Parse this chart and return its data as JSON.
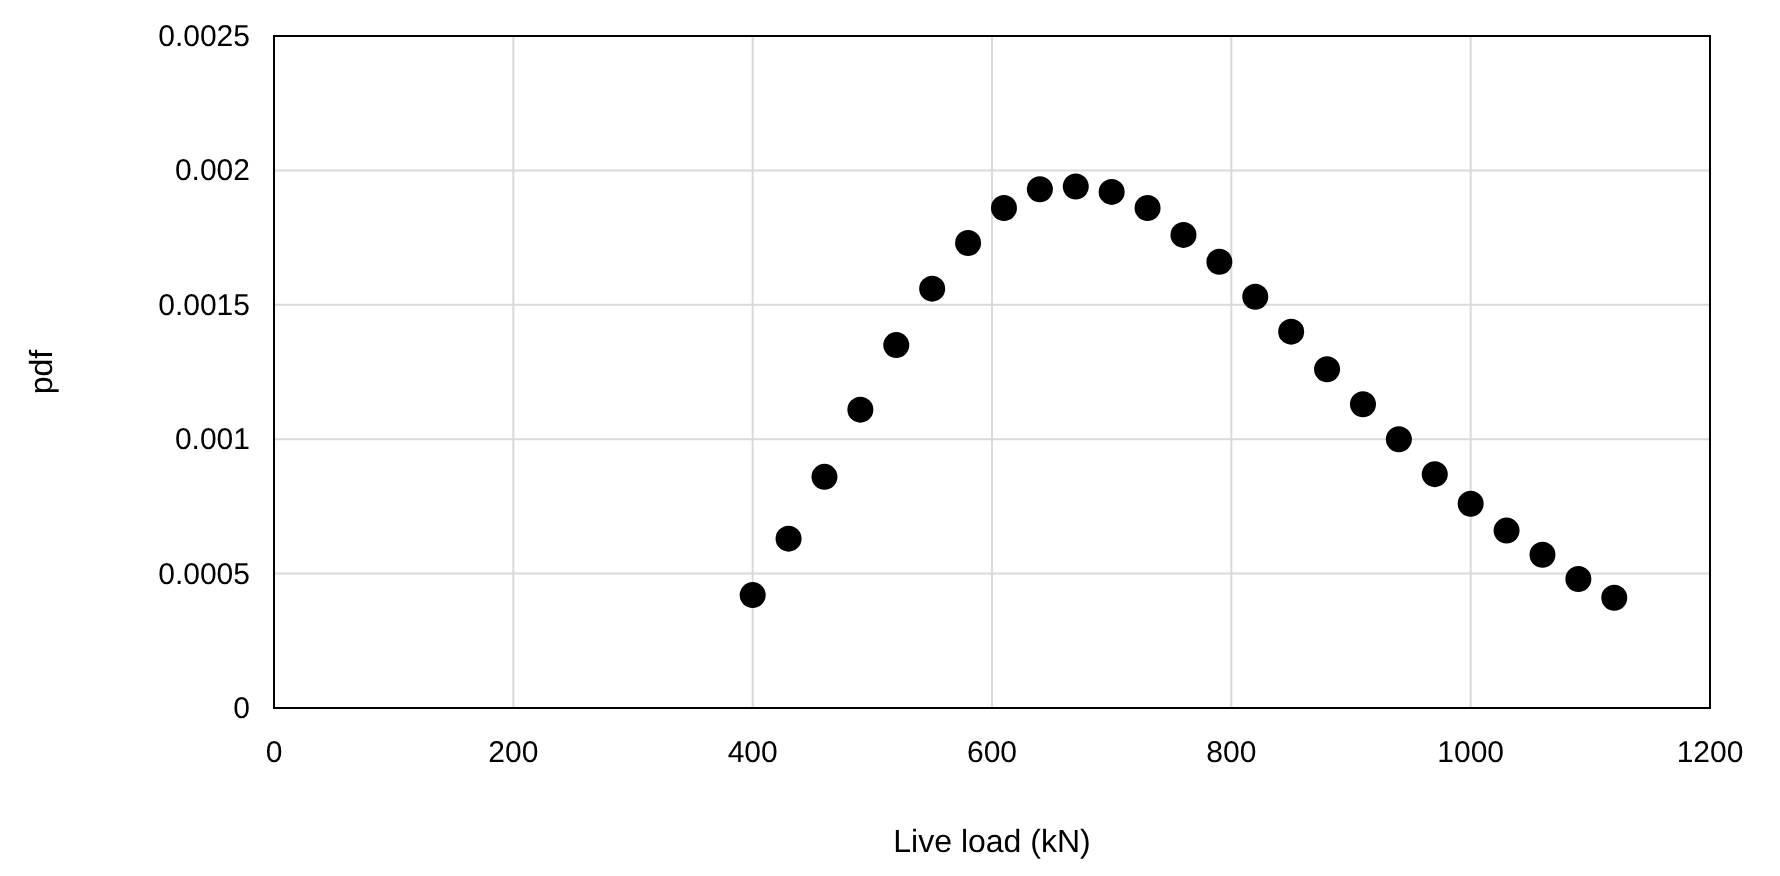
{
  "chart_data": {
    "type": "scatter",
    "xlabel": "Live load (kN)",
    "ylabel": "pdf",
    "x": [
      400,
      430,
      460,
      490,
      520,
      550,
      580,
      610,
      640,
      670,
      700,
      730,
      760,
      790,
      820,
      850,
      880,
      910,
      940,
      970,
      1000,
      1030,
      1060,
      1090,
      1120
    ],
    "series": [
      {
        "color": "#000000",
        "values": [
          0.00042,
          0.00063,
          0.00086,
          0.00111,
          0.00135,
          0.00156,
          0.00173,
          0.00186,
          0.00193,
          0.00194,
          0.00192,
          0.00186,
          0.00176,
          0.00166,
          0.00153,
          0.0014,
          0.00126,
          0.00113,
          0.001,
          0.00087,
          0.00076,
          0.00066,
          0.00057,
          0.00048,
          0.00041
        ]
      }
    ],
    "xlim": [
      0,
      1200
    ],
    "xticks": [
      0,
      200,
      400,
      600,
      800,
      1000,
      1200
    ],
    "ylim": [
      0,
      0.0025
    ],
    "yticks": [
      0,
      0.0005,
      0.001,
      0.0015,
      0.002,
      0.0025
    ],
    "grid": true,
    "marker": "circle"
  }
}
